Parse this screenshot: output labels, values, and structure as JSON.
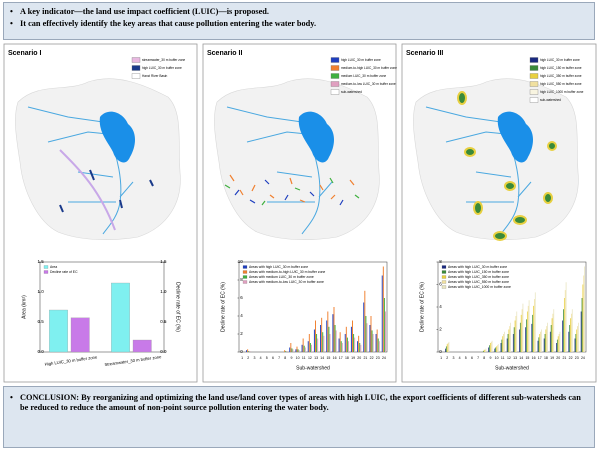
{
  "header": {
    "bullets": [
      "A key indicator—the land use impact coefficient (LUIC)—is proposed.",
      "It can effectively identify the key areas that cause pollution entering the water body."
    ]
  },
  "panels": [
    {
      "title": "Scenario I",
      "map_legend": [
        {
          "label": "streamwater_30 m buffer zone",
          "color": "#e8b8e0"
        },
        {
          "label": "high LUIC_30 m buffer zone",
          "color": "#1a3a8a"
        },
        {
          "label": "Hanzi River Basin",
          "color": "#ffffff"
        }
      ]
    },
    {
      "title": "Scenario II",
      "map_legend": [
        {
          "label": "high LUIC_30 m buffer zone",
          "color": "#1f3fbf"
        },
        {
          "label": "medium-to-high LUIC_30 m buffer zone",
          "color": "#f08030"
        },
        {
          "label": "medium LUIC_30 m buffer zone",
          "color": "#40b040"
        },
        {
          "label": "medium-to-low LUIC_30 m buffer zone",
          "color": "#e0a0c0"
        },
        {
          "label": "sub-watershed",
          "color": "#ffffff"
        }
      ]
    },
    {
      "title": "Scenario III",
      "map_legend": [
        {
          "label": "high LUIC_30 m buffer zone",
          "color": "#1a2a80"
        },
        {
          "label": "high LUIC_150 m buffer zone",
          "color": "#3a8a3a"
        },
        {
          "label": "high LUIC_350 m buffer zone",
          "color": "#e8d040"
        },
        {
          "label": "high LUIC_550 m buffer zone",
          "color": "#f0e0a0"
        },
        {
          "label": "high LUIC_1000 m buffer zone",
          "color": "#f8f4e0"
        },
        {
          "label": "sub-watershed",
          "color": "#ffffff"
        }
      ]
    }
  ],
  "chart_data": [
    {
      "type": "bar",
      "categories": [
        "High LUIC_30 m buffer zone",
        "Streamwater_30 m buffer zone"
      ],
      "ylabel": "Area (km²)",
      "y2label": "Decline rate of EC (%)",
      "ylim": [
        0,
        1.5
      ],
      "yticks": [
        {
          "value": 0,
          "label": "0.0"
        },
        0.5,
        {
          "value": 1,
          "label": "1.0"
        },
        1.5
      ],
      "y2lim": [
        0,
        1.5
      ],
      "y2ticks": [
        {
          "value": 0,
          "label": "0.0"
        },
        0.5,
        {
          "value": 1,
          "label": "1.0"
        },
        1.5
      ],
      "series": [
        {
          "name": "Area",
          "color": "#7ff0f0",
          "values": [
            0.7,
            1.15
          ]
        },
        {
          "name": "Decline rate of EC",
          "color": "#c87ae8",
          "axis": "y2",
          "values": [
            0.57,
            0.2
          ]
        }
      ]
    },
    {
      "type": "bar",
      "categories": [
        "1",
        "2",
        "3",
        "4",
        "5",
        "6",
        "7",
        "8",
        "9",
        "10",
        "11",
        "12",
        "13",
        "14",
        "15",
        "16",
        "17",
        "18",
        "19",
        "20",
        "21",
        "22",
        "23",
        "24"
      ],
      "xlabel": "Sub-watershed",
      "ylabel": "Decline rate of EC (%)",
      "ylim": [
        0,
        10
      ],
      "yticks": [
        0,
        2,
        4,
        6,
        8,
        10
      ],
      "series": [
        {
          "name": "Areas with high LUIC_30 m buffer zone",
          "color": "#1f3fbf",
          "values": [
            0,
            0.2,
            0,
            0,
            0,
            0,
            0,
            0,
            0.5,
            0.3,
            0.8,
            1.2,
            2.5,
            3.0,
            3.5,
            4.2,
            1.5,
            2.0,
            2.8,
            1.2,
            5.5,
            3.0,
            2.0,
            8.5
          ]
        },
        {
          "name": "Areas with medium-to-high LUIC_30 m buffer zone",
          "color": "#f08030",
          "values": [
            0,
            0.3,
            0,
            0,
            0,
            0,
            0,
            0.2,
            1.0,
            0.6,
            1.5,
            2.0,
            3.5,
            3.8,
            4.5,
            5.0,
            2.2,
            2.8,
            3.5,
            1.8,
            6.8,
            4.0,
            2.5,
            9.5
          ]
        },
        {
          "name": "Areas with medium LUIC_30 m buffer zone",
          "color": "#40b040",
          "values": [
            0,
            0.1,
            0,
            0,
            0,
            0,
            0,
            0.1,
            0.4,
            0.3,
            0.7,
            1.0,
            2.0,
            2.2,
            2.8,
            3.0,
            1.2,
            1.6,
            2.0,
            1.0,
            4.0,
            2.4,
            1.5,
            6.0
          ]
        },
        {
          "name": "Areas with medium-to-low LUIC_30 m buffer zone",
          "color": "#e0a0c0",
          "values": [
            0,
            0.1,
            0,
            0,
            0,
            0,
            0,
            0.1,
            0.3,
            0.2,
            0.5,
            0.8,
            1.5,
            1.8,
            2.0,
            2.4,
            1.0,
            1.2,
            1.6,
            0.8,
            3.2,
            2.0,
            1.2,
            4.5
          ]
        }
      ]
    },
    {
      "type": "bar",
      "categories": [
        "1",
        "2",
        "3",
        "4",
        "5",
        "6",
        "7",
        "8",
        "9",
        "10",
        "11",
        "12",
        "13",
        "14",
        "15",
        "16",
        "17",
        "18",
        "19",
        "20",
        "21",
        "22",
        "23",
        "24"
      ],
      "xlabel": "Sub-watershed",
      "ylabel": "Decline rate of EC (%)",
      "ylim": [
        0,
        8
      ],
      "yticks": [
        0,
        2,
        4,
        6,
        8
      ],
      "series": [
        {
          "name": "Areas with high LUIC_30 m buffer zone",
          "color": "#1a2a80",
          "values": [
            0,
            0.3,
            0,
            0,
            0,
            0,
            0,
            0,
            0.4,
            0.3,
            0.8,
            1.2,
            1.6,
            2.0,
            2.2,
            2.5,
            1.0,
            1.2,
            1.8,
            0.8,
            2.8,
            1.8,
            1.2,
            3.6
          ]
        },
        {
          "name": "Areas with high LUIC_150 m buffer zone",
          "color": "#3a8a3a",
          "values": [
            0,
            0.5,
            0,
            0,
            0,
            0,
            0,
            0.1,
            0.6,
            0.4,
            1.1,
            1.6,
            2.2,
            2.6,
            2.9,
            3.3,
            1.3,
            1.6,
            2.4,
            1.1,
            3.8,
            2.4,
            1.6,
            4.8
          ]
        },
        {
          "name": "Areas with high LUIC_350 m buffer zone",
          "color": "#e8d040",
          "values": [
            0,
            0.7,
            0,
            0,
            0,
            0,
            0,
            0.2,
            0.8,
            0.5,
            1.4,
            2.0,
            2.8,
            3.3,
            3.6,
            4.1,
            1.6,
            2.0,
            3.0,
            1.4,
            4.8,
            3.0,
            2.0,
            6.0
          ]
        },
        {
          "name": "Areas with high LUIC_550 m buffer zone",
          "color": "#f0e0a0",
          "values": [
            0,
            0.8,
            0,
            0,
            0,
            0,
            0,
            0.2,
            0.9,
            0.6,
            1.6,
            2.3,
            3.2,
            3.8,
            4.1,
            4.7,
            1.8,
            2.3,
            3.4,
            1.6,
            5.5,
            3.4,
            2.3,
            6.8
          ]
        },
        {
          "name": "Areas with high LUIC_1000 m buffer zone",
          "color": "#e8e4c0",
          "values": [
            0,
            0.9,
            0,
            0,
            0,
            0,
            0,
            0.3,
            1.0,
            0.7,
            1.8,
            2.6,
            3.6,
            4.3,
            4.6,
            5.3,
            2.0,
            2.6,
            3.8,
            1.8,
            6.2,
            3.8,
            2.6,
            7.6
          ]
        }
      ]
    }
  ],
  "conclusion": "CONCLUSION: By reorganizing and optimizing the land use/land cover types of areas with high LUIC, the export coefficients of different sub-watersheds can be reduced to reduce the amount of non-point source pollution entering the water body."
}
